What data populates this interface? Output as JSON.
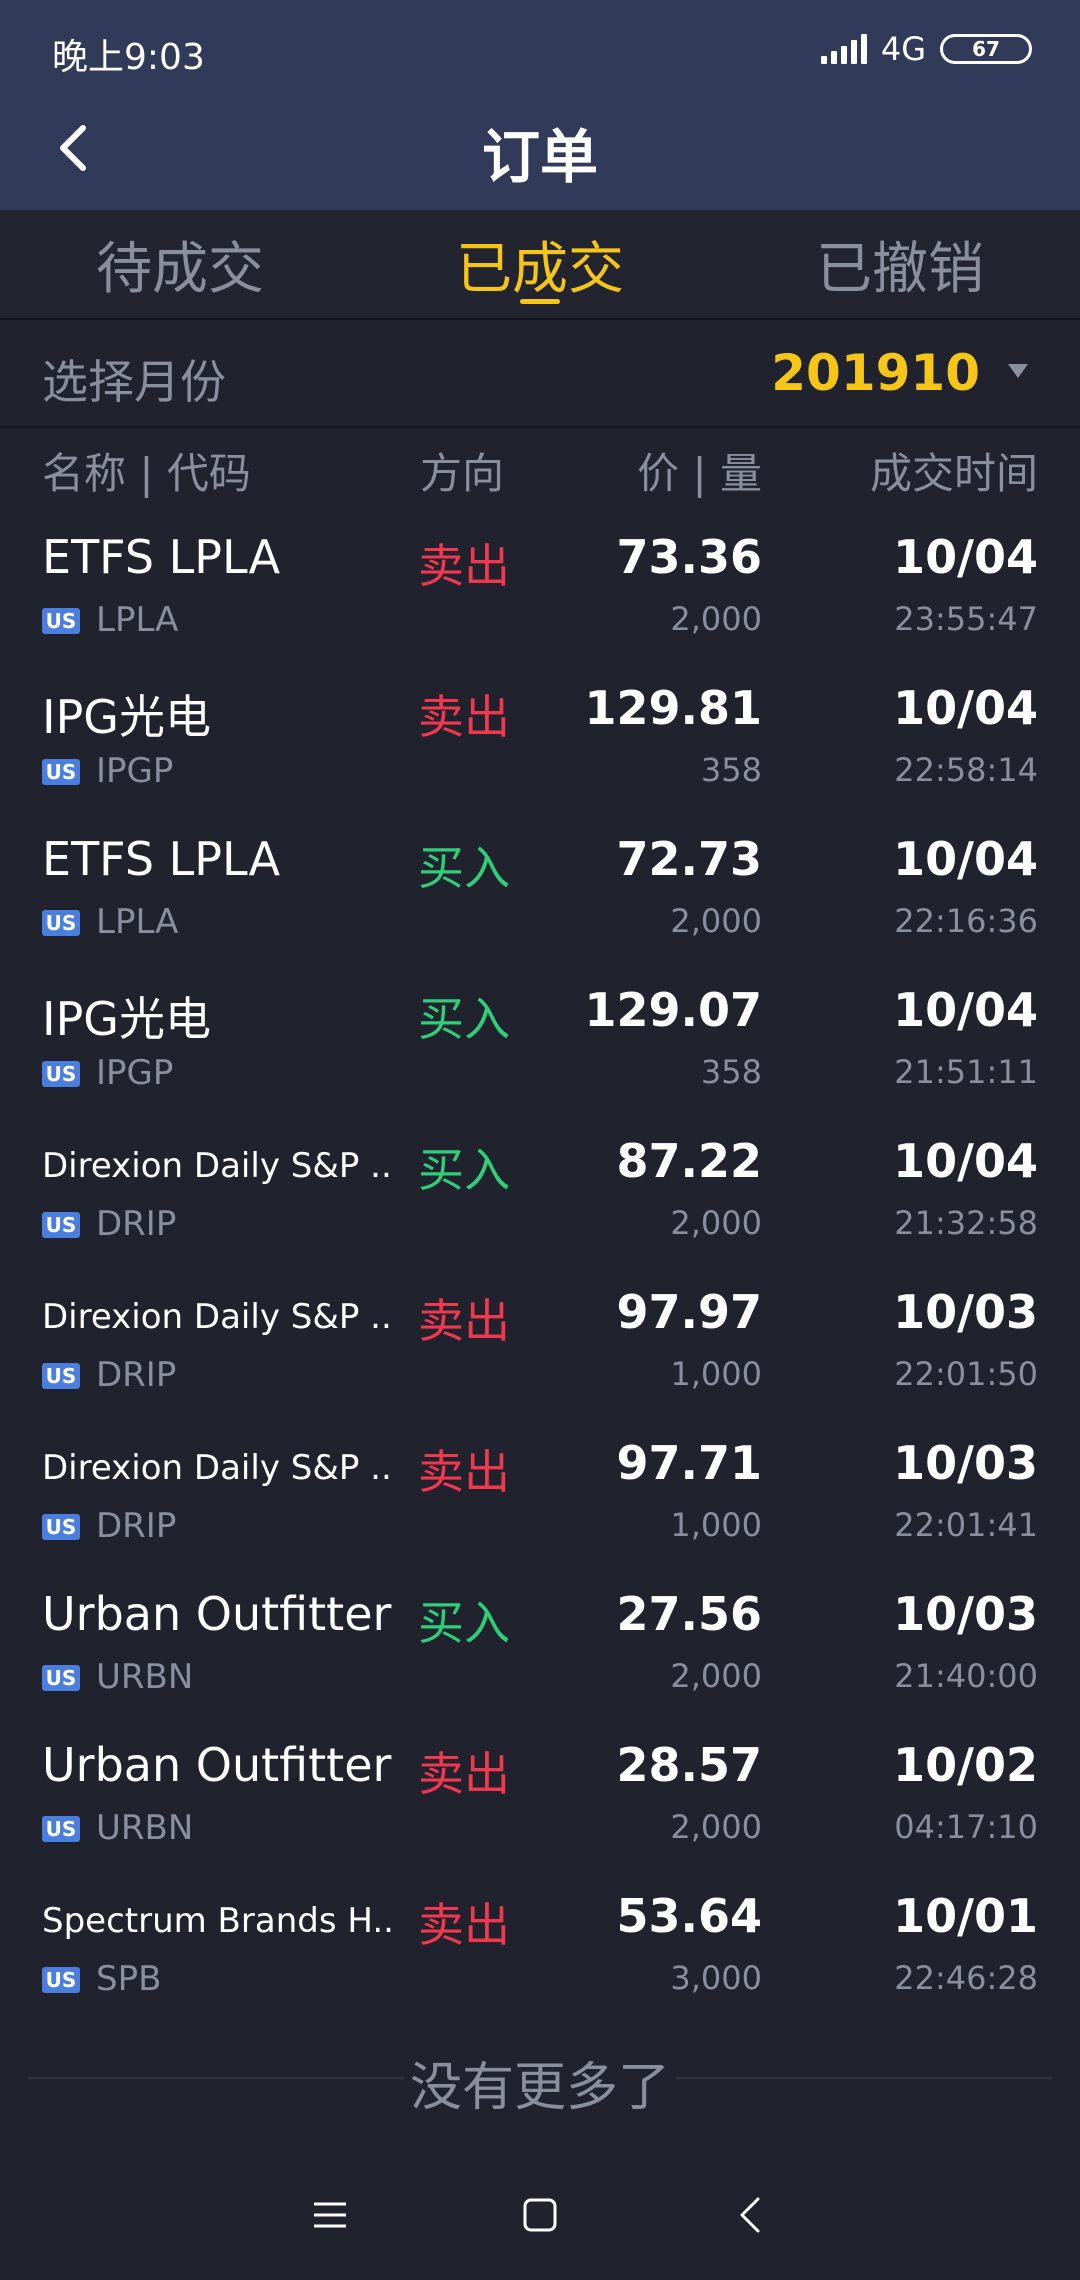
{
  "status_bar": {
    "time": "晚上9:03",
    "network": "4G",
    "battery": "67"
  },
  "header": {
    "title": "订单"
  },
  "tabs": [
    {
      "label": "待成交",
      "active": false
    },
    {
      "label": "已成交",
      "active": true
    },
    {
      "label": "已撤销",
      "active": false
    }
  ],
  "month_selector": {
    "label": "选择月份",
    "value": "201910"
  },
  "columns": {
    "name": "名称 | 代码",
    "direction": "方向",
    "price_qty": "价 | 量",
    "time": "成交时间"
  },
  "orders": [
    {
      "name": "ETFS LPLA",
      "market": "US",
      "code": "LPLA",
      "direction": "卖出",
      "side": "sell",
      "price": "73.36",
      "qty": "2,000",
      "date": "10/04",
      "time": "23:55:47",
      "small": false
    },
    {
      "name": "IPG光电",
      "market": "US",
      "code": "IPGP",
      "direction": "卖出",
      "side": "sell",
      "price": "129.81",
      "qty": "358",
      "date": "10/04",
      "time": "22:58:14",
      "small": false
    },
    {
      "name": "ETFS LPLA",
      "market": "US",
      "code": "LPLA",
      "direction": "买入",
      "side": "buy",
      "price": "72.73",
      "qty": "2,000",
      "date": "10/04",
      "time": "22:16:36",
      "small": false
    },
    {
      "name": "IPG光电",
      "market": "US",
      "code": "IPGP",
      "direction": "买入",
      "side": "buy",
      "price": "129.07",
      "qty": "358",
      "date": "10/04",
      "time": "21:51:11",
      "small": false
    },
    {
      "name": "Direxion Daily S&P ...",
      "market": "US",
      "code": "DRIP",
      "direction": "买入",
      "side": "buy",
      "price": "87.22",
      "qty": "2,000",
      "date": "10/04",
      "time": "21:32:58",
      "small": true
    },
    {
      "name": "Direxion Daily S&P ...",
      "market": "US",
      "code": "DRIP",
      "direction": "卖出",
      "side": "sell",
      "price": "97.97",
      "qty": "1,000",
      "date": "10/03",
      "time": "22:01:50",
      "small": true
    },
    {
      "name": "Direxion Daily S&P ...",
      "market": "US",
      "code": "DRIP",
      "direction": "卖出",
      "side": "sell",
      "price": "97.71",
      "qty": "1,000",
      "date": "10/03",
      "time": "22:01:41",
      "small": true
    },
    {
      "name": "Urban Outfitters",
      "market": "US",
      "code": "URBN",
      "direction": "买入",
      "side": "buy",
      "price": "27.56",
      "qty": "2,000",
      "date": "10/03",
      "time": "21:40:00",
      "small": false
    },
    {
      "name": "Urban Outfitters",
      "market": "US",
      "code": "URBN",
      "direction": "卖出",
      "side": "sell",
      "price": "28.57",
      "qty": "2,000",
      "date": "10/02",
      "time": "04:17:10",
      "small": false
    },
    {
      "name": "Spectrum Brands H...",
      "market": "US",
      "code": "SPB",
      "direction": "卖出",
      "side": "sell",
      "price": "53.64",
      "qty": "3,000",
      "date": "10/01",
      "time": "22:46:28",
      "small": true
    }
  ],
  "footer": {
    "no_more": "没有更多了"
  },
  "icons": {
    "back": "chevron-left-icon",
    "menu": "menu-icon",
    "home": "home-icon",
    "nav_back": "nav-back-icon"
  }
}
